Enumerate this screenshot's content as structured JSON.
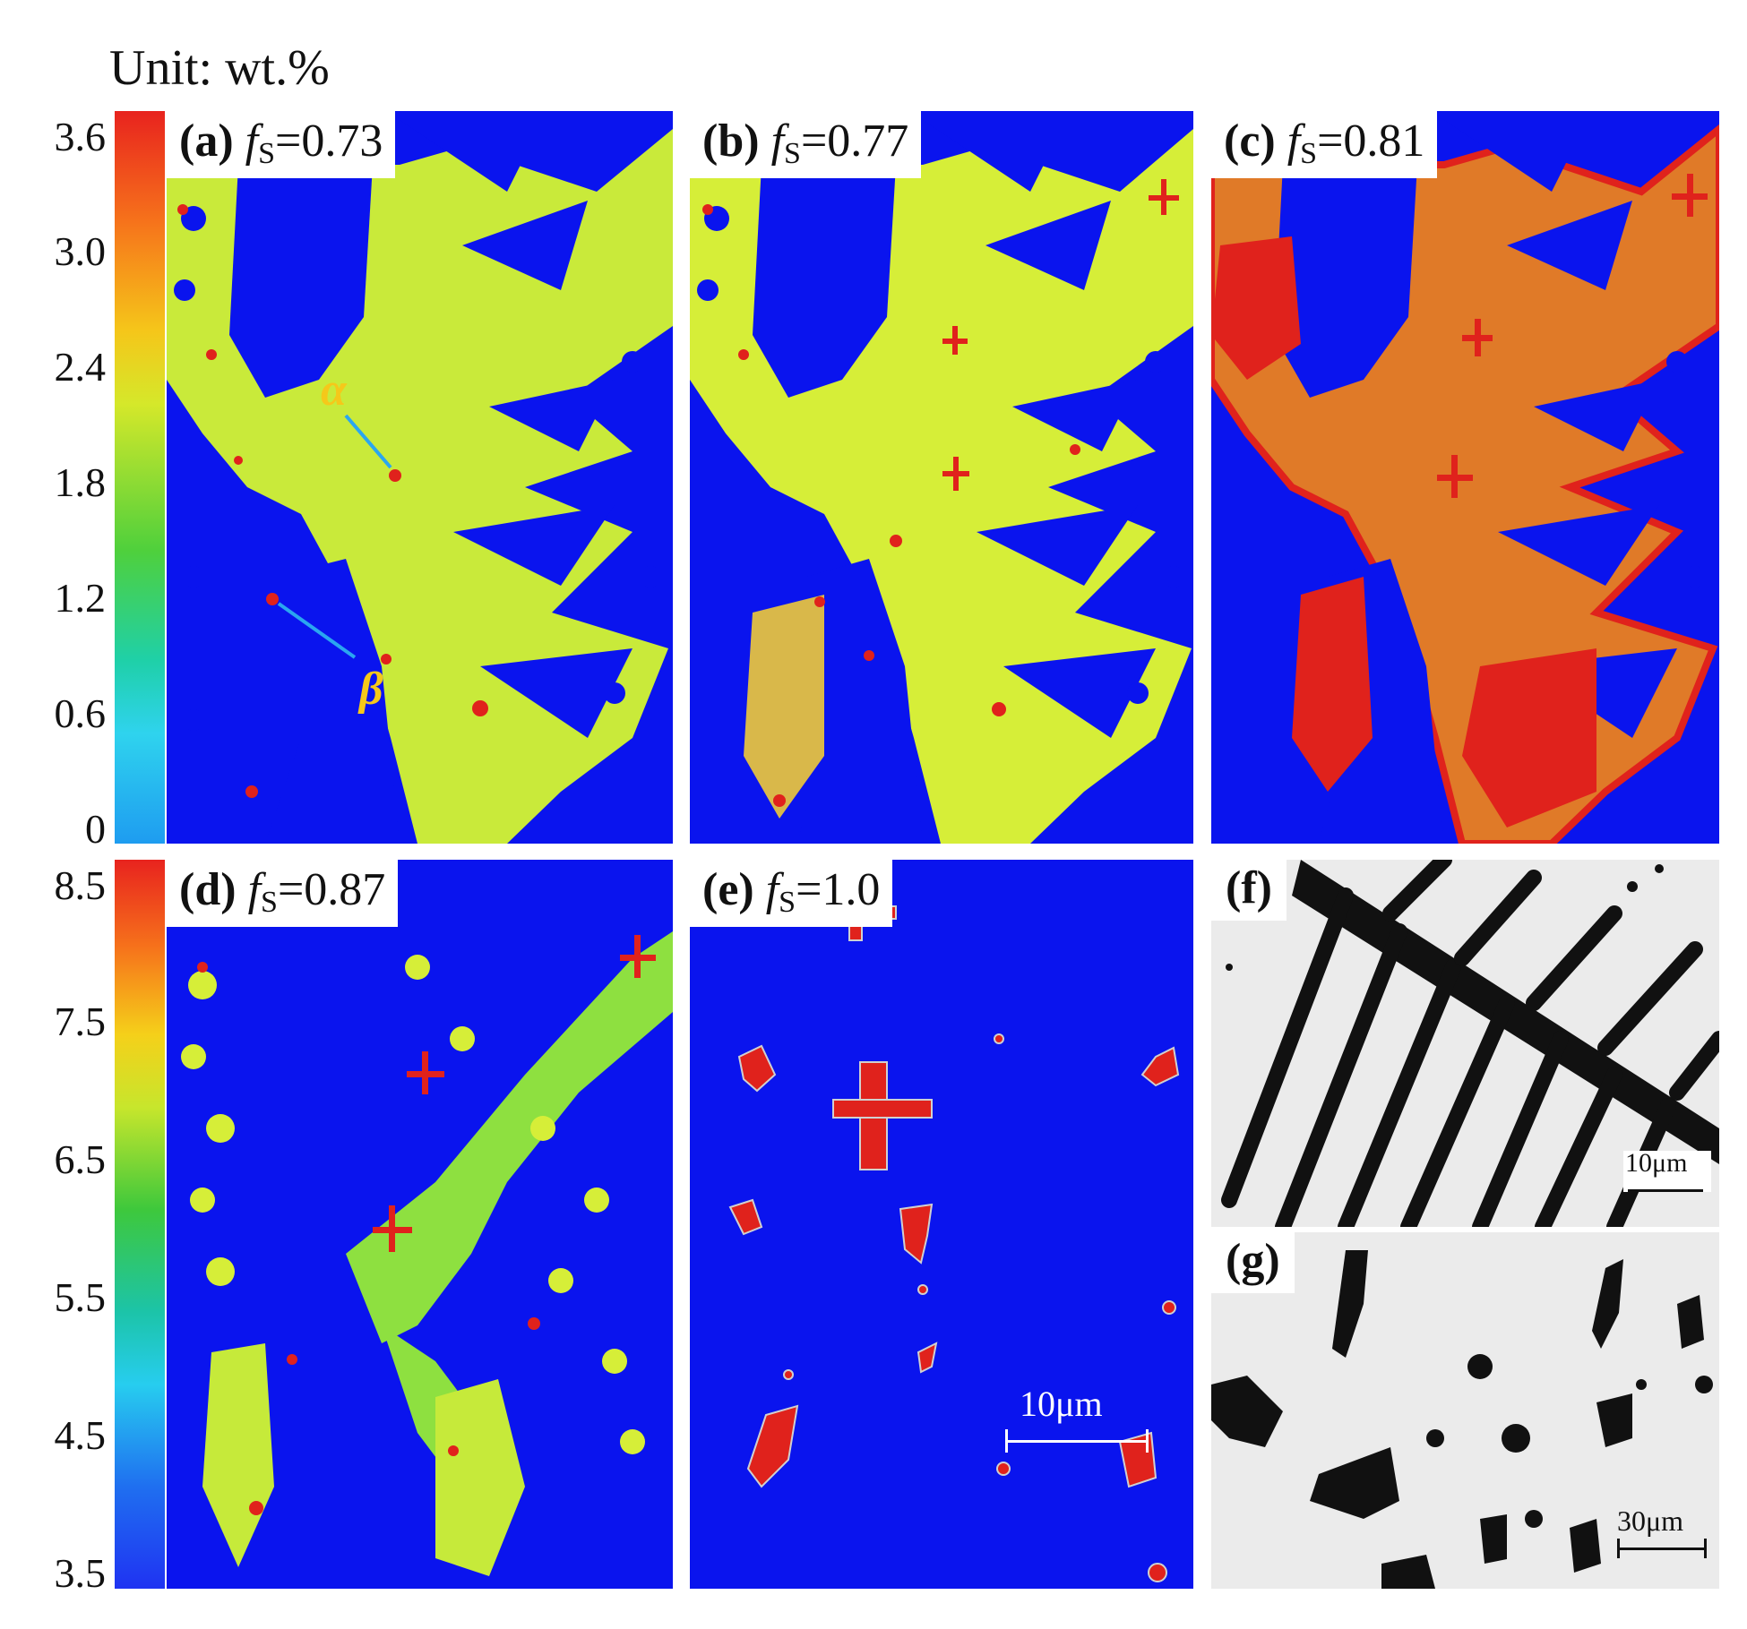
{
  "unit_label": "Unit: wt.%",
  "colorbar_top": {
    "ticks": [
      "3.6",
      "3.0",
      "2.4",
      "1.8",
      "1.2",
      "0.6",
      "0"
    ]
  },
  "colorbar_bottom": {
    "ticks": [
      "8.5",
      "7.5",
      "6.5",
      "5.5",
      "4.5",
      "3.5"
    ]
  },
  "panels": {
    "a": {
      "letter": "(a)",
      "fs_sym": "f",
      "fs_sub": "S",
      "fs_val": "=0.73"
    },
    "b": {
      "letter": "(b)",
      "fs_sym": "f",
      "fs_sub": "S",
      "fs_val": "=0.77"
    },
    "c": {
      "letter": "(c)",
      "fs_sym": "f",
      "fs_sub": "S",
      "fs_val": "=0.81"
    },
    "d": {
      "letter": "(d)",
      "fs_sym": "f",
      "fs_sub": "S",
      "fs_val": "=0.87"
    },
    "e": {
      "letter": "(e)",
      "fs_sym": "f",
      "fs_sub": "S",
      "fs_val": "=1.0"
    },
    "f": {
      "letter": "(f)"
    },
    "g": {
      "letter": "(g)"
    }
  },
  "annotations": {
    "alpha": "α",
    "beta": "β"
  },
  "scale_bars": {
    "e": "10μm",
    "f": "10μm",
    "g": "30μm"
  },
  "colors": {
    "matrix_blue": "#0a14ee",
    "phase_a": "#c9ea3a",
    "phase_b": "#d6ee38",
    "phase_c": "#e07a28",
    "phase_c_edge": "#e0221c",
    "phase_d": "#8ee040",
    "precipitate_red": "#e0221c",
    "annotation_yellow": "#f5c81a",
    "arrow_blue": "#2aa6f0"
  }
}
